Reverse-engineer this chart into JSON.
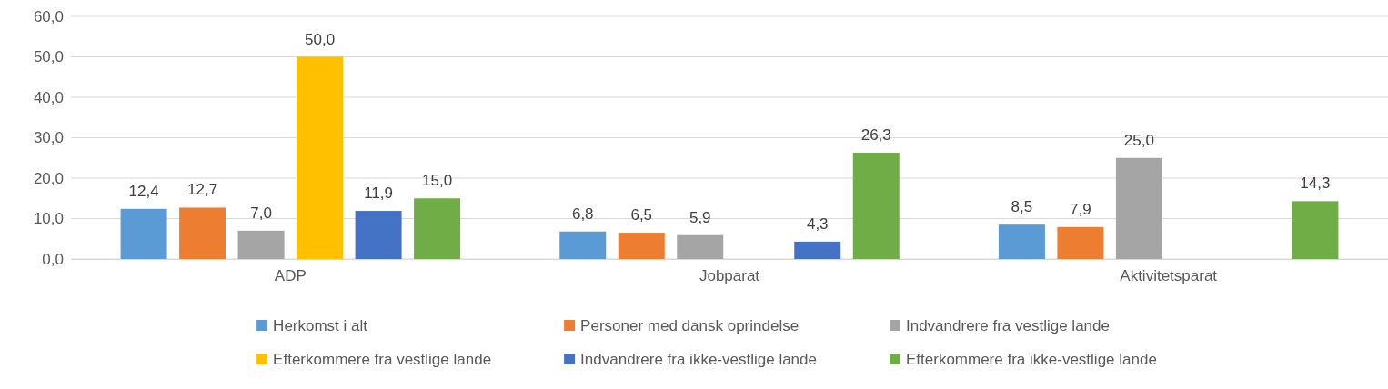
{
  "chart_data": {
    "type": "bar",
    "categories": [
      "ADP",
      "Jobparat",
      "Aktivitetsparat"
    ],
    "series": [
      {
        "name": "Herkomst i alt",
        "color": "#5b9bd5",
        "values": [
          12.4,
          6.8,
          8.5
        ],
        "value_labels": [
          "12,4",
          "6,8",
          "8,5"
        ]
      },
      {
        "name": "Personer med dansk oprindelse",
        "color": "#ed7d31",
        "values": [
          12.7,
          6.5,
          7.9
        ],
        "value_labels": [
          "12,7",
          "6,5",
          "7,9"
        ]
      },
      {
        "name": "Indvandrere fra vestlige lande",
        "color": "#a5a5a5",
        "values": [
          7.0,
          5.9,
          25.0
        ],
        "value_labels": [
          "7,0",
          "5,9",
          "25,0"
        ]
      },
      {
        "name": "Efterkommere fra vestlige lande",
        "color": "#ffc000",
        "values": [
          50.0,
          null,
          null
        ],
        "value_labels": [
          "50,0",
          null,
          null
        ]
      },
      {
        "name": "Indvandrere fra ikke-vestlige lande",
        "color": "#4472c4",
        "values": [
          11.9,
          4.3,
          null
        ],
        "value_labels": [
          "11,9",
          "4,3",
          null
        ]
      },
      {
        "name": "Efterkommere fra ikke-vestlige lande",
        "color": "#70ad47",
        "values": [
          15.0,
          26.3,
          14.3
        ],
        "value_labels": [
          "15,0",
          "26,3",
          "14,3"
        ]
      }
    ],
    "ylim": [
      0,
      60
    ],
    "yticks": [
      {
        "value": 0,
        "label": "0,0"
      },
      {
        "value": 10,
        "label": "10,0"
      },
      {
        "value": 20,
        "label": "20,0"
      },
      {
        "value": 30,
        "label": "30,0"
      },
      {
        "value": 40,
        "label": "40,0"
      },
      {
        "value": 50,
        "label": "50,0"
      },
      {
        "value": 60,
        "label": "60,0"
      }
    ],
    "grid": "y",
    "legend": "bottom"
  }
}
